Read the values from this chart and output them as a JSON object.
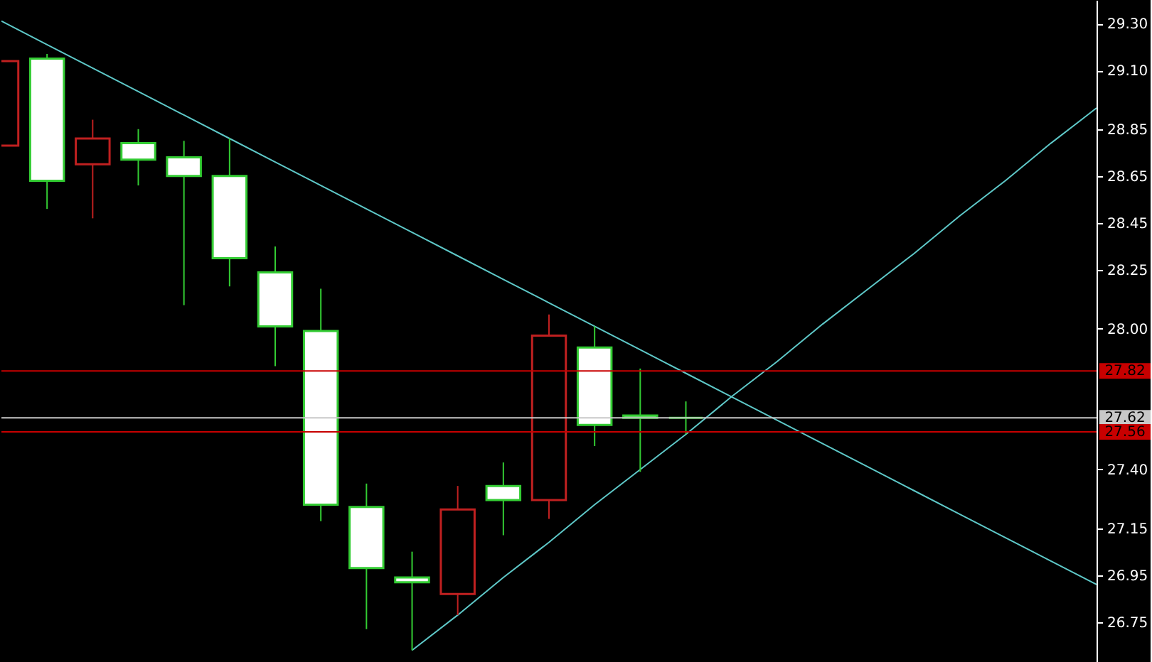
{
  "chart_data": {
    "type": "candlestick",
    "categories": [
      null,
      null,
      null,
      null,
      null,
      null,
      null,
      null,
      null,
      null,
      null,
      null,
      null,
      null,
      null,
      null,
      null,
      null,
      null,
      null,
      null,
      null,
      null,
      null,
      null
    ],
    "ohlc": [
      [
        28.78,
        29.14,
        28.78,
        29.14
      ],
      [
        29.15,
        29.17,
        28.51,
        28.63
      ],
      [
        28.7,
        28.89,
        28.47,
        28.81
      ],
      [
        28.79,
        28.85,
        28.61,
        28.72
      ],
      [
        28.73,
        28.8,
        28.1,
        28.65
      ],
      [
        28.65,
        28.81,
        28.18,
        28.3
      ],
      [
        28.24,
        28.35,
        27.84,
        28.01
      ],
      [
        27.99,
        28.17,
        27.18,
        27.25
      ],
      [
        27.24,
        27.34,
        26.72,
        26.98
      ],
      [
        26.94,
        27.05,
        26.63,
        26.92
      ],
      [
        26.87,
        27.33,
        26.78,
        27.23
      ],
      [
        27.33,
        27.43,
        27.12,
        27.27
      ],
      [
        27.27,
        28.06,
        27.19,
        27.97
      ],
      [
        27.92,
        28.01,
        27.5,
        27.59
      ],
      [
        27.63,
        27.83,
        27.39,
        27.62
      ],
      [
        27.62,
        27.69,
        27.55,
        27.62
      ],
      null,
      null,
      null,
      null,
      null,
      null,
      null,
      null,
      null
    ],
    "colors": [
      "#c02020",
      "#33cc33",
      "#c02020",
      "#33cc33",
      "#33cc33",
      "#33cc33",
      "#33cc33",
      "#33cc33",
      "#33cc33",
      "#33cc33",
      "#c02020",
      "#33cc33",
      "#c02020",
      "#33cc33",
      "#33cc33",
      "#33cc33",
      null,
      null,
      null,
      null,
      null,
      null,
      null,
      null,
      null
    ],
    "series": [
      {
        "type": "line",
        "color": "#5ec8c8",
        "values": [
          29.31,
          29.21,
          29.11,
          29.01,
          28.91,
          28.81,
          28.71,
          28.61,
          28.51,
          28.41,
          28.31,
          28.21,
          28.11,
          28.01,
          27.91,
          27.81,
          27.71,
          27.61,
          27.51,
          27.41,
          27.31,
          27.21,
          27.11,
          27.01,
          26.91
        ]
      },
      {
        "type": "line",
        "color": "#5ec8c8",
        "values": [
          null,
          null,
          null,
          null,
          null,
          null,
          null,
          null,
          null,
          26.63,
          26.78,
          26.94,
          27.09,
          27.25,
          27.4,
          27.55,
          27.71,
          27.86,
          28.02,
          28.17,
          28.32,
          28.48,
          28.63,
          28.79,
          28.94
        ]
      }
    ],
    "ref_lines": [
      {
        "axis": "y",
        "value": 27.82,
        "label": "27.82",
        "color": "#c80000"
      },
      {
        "axis": "y",
        "value": 27.62,
        "label": "27.62",
        "color": "#c8c8c8"
      },
      {
        "axis": "y",
        "value": 27.56,
        "label": "27.56",
        "color": "#c80000"
      }
    ],
    "ylim": [
      26.58,
      29.4
    ],
    "yticks": [
      {
        "value": 26.75,
        "label": "26.75"
      },
      {
        "value": 26.95,
        "label": "26.95"
      },
      {
        "value": 27.15,
        "label": "27.15"
      },
      {
        "value": 27.4,
        "label": "27.40"
      },
      {
        "value": 28.0,
        "label": "28.00"
      },
      {
        "value": 28.25,
        "label": "28.25"
      },
      {
        "value": 28.45,
        "label": "28.45"
      },
      {
        "value": 28.65,
        "label": "28.65"
      },
      {
        "value": 28.85,
        "label": "28.85"
      },
      {
        "value": 29.1,
        "label": "29.10"
      },
      {
        "value": 29.3,
        "label": "29.30"
      }
    ],
    "tick_labels": "y"
  }
}
